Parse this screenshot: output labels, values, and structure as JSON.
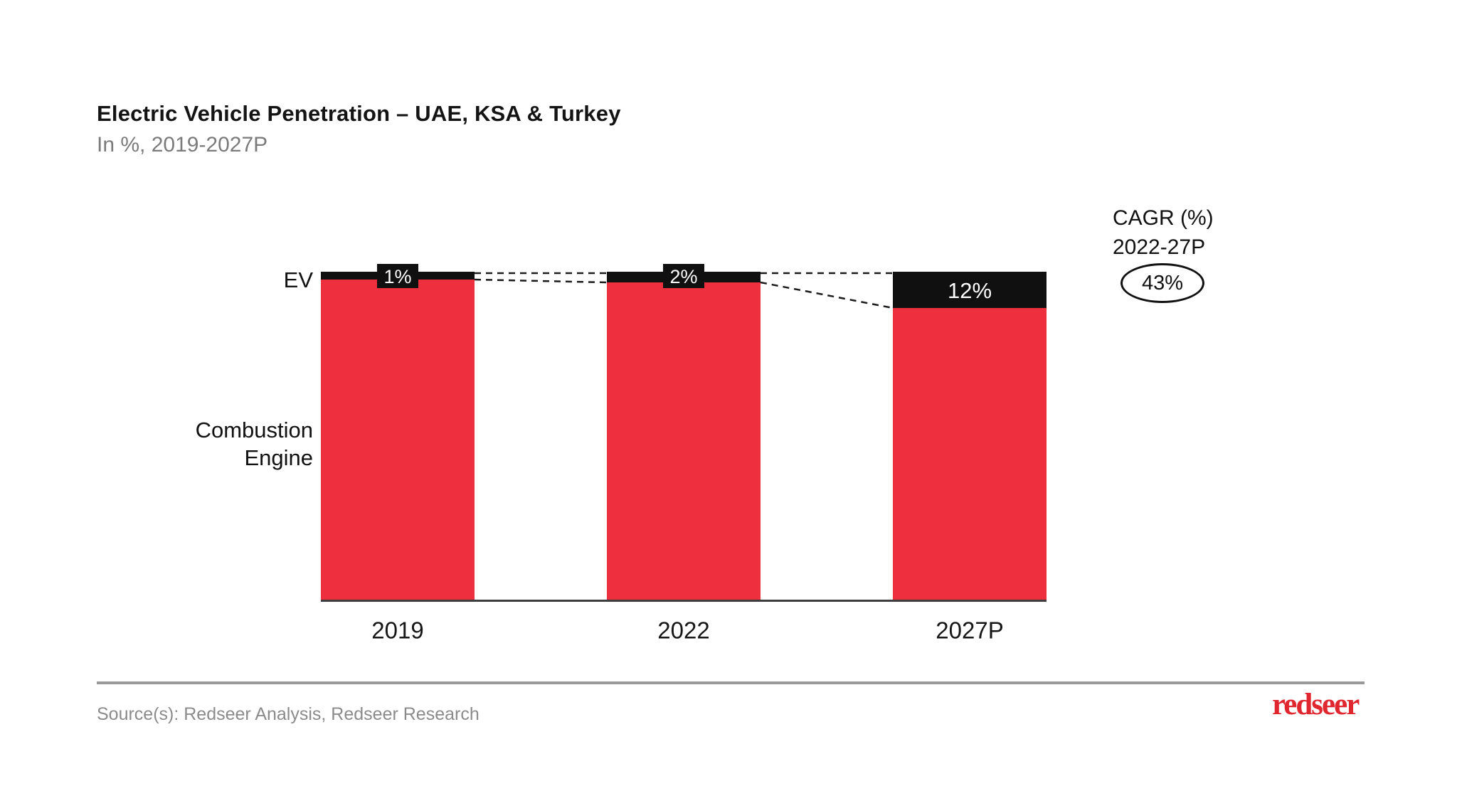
{
  "header": {
    "title": "Electric Vehicle Penetration – UAE, KSA & Turkey",
    "subtitle": "In %, 2019-2027P"
  },
  "cagr": {
    "label_line1": "CAGR (%)",
    "label_line2": "2022-27P",
    "value": "43%"
  },
  "series_labels": {
    "ev": "EV",
    "combustion_line1": "Combustion",
    "combustion_line2": "Engine"
  },
  "footer": {
    "source": "Source(s): Redseer Analysis, Redseer Research",
    "logo": "redseer"
  },
  "chart_data": {
    "type": "bar",
    "stacked": true,
    "title": "Electric Vehicle Penetration – UAE, KSA & Turkey",
    "subtitle": "In %, 2019-2027P",
    "unit": "%",
    "ylim": [
      0,
      100
    ],
    "grid": false,
    "categories": [
      "2019",
      "2022",
      "2027P"
    ],
    "series": [
      {
        "name": "EV",
        "color": "#101010",
        "values": [
          1,
          2,
          12
        ]
      },
      {
        "name": "Combustion Engine",
        "color": "#EE2F3E",
        "values": [
          99,
          98,
          88
        ]
      }
    ],
    "value_labels": [
      "1%",
      "2%",
      "12%"
    ],
    "annotations": {
      "cagr_label": "CAGR (%) 2022-27P",
      "cagr_value": "43%",
      "connectors": "dashed lines linking EV segment tops between consecutive bars"
    },
    "colors": {
      "combustion_red": "#EE2F3E",
      "ev_black": "#101010",
      "label_text": "#ffffff",
      "axis_line": "#3d3d3d",
      "logo_red": "#E0262F"
    }
  }
}
